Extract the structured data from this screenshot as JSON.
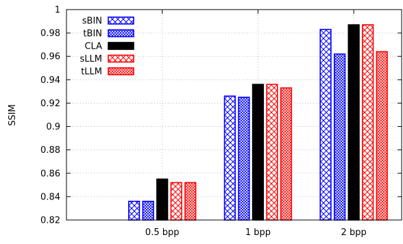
{
  "chart_data": {
    "type": "bar",
    "title": "",
    "xlabel": "",
    "ylabel": "SSIM",
    "ylim": [
      0.82,
      1.0
    ],
    "yticks": [
      "0.82",
      "0.84",
      "0.86",
      "0.88",
      "0.9",
      "0.92",
      "0.94",
      "0.96",
      "0.98",
      "1"
    ],
    "categories": [
      "0.5 bpp",
      "1 bpp",
      "2 bpp"
    ],
    "grid": "dotted",
    "legend_position": "top-left",
    "series": [
      {
        "name": "sBIN",
        "values": [
          0.836,
          0.926,
          0.983
        ],
        "color": "#0000ff",
        "pattern": "sparse-crosshatch"
      },
      {
        "name": "tBIN",
        "values": [
          0.836,
          0.925,
          0.962
        ],
        "color": "#0000ff",
        "pattern": "dense-crosshatch"
      },
      {
        "name": "CLA",
        "values": [
          0.855,
          0.936,
          0.987
        ],
        "color": "#000000",
        "pattern": "solid"
      },
      {
        "name": "sLLM",
        "values": [
          0.852,
          0.936,
          0.987
        ],
        "color": "#ff0000",
        "pattern": "sparse-crosshatch"
      },
      {
        "name": "tLLM",
        "values": [
          0.852,
          0.933,
          0.964
        ],
        "color": "#ff0000",
        "pattern": "dense-crosshatch"
      }
    ]
  }
}
